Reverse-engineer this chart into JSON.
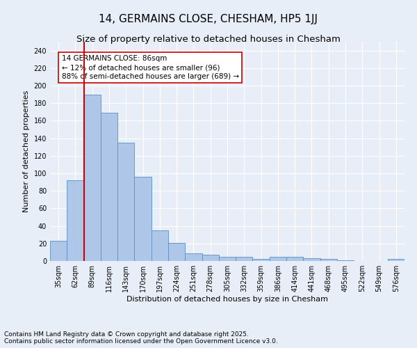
{
  "title": "14, GERMAINS CLOSE, CHESHAM, HP5 1JJ",
  "subtitle": "Size of property relative to detached houses in Chesham",
  "xlabel": "Distribution of detached houses by size in Chesham",
  "ylabel": "Number of detached properties",
  "categories": [
    "35sqm",
    "62sqm",
    "89sqm",
    "116sqm",
    "143sqm",
    "170sqm",
    "197sqm",
    "224sqm",
    "251sqm",
    "278sqm",
    "305sqm",
    "332sqm",
    "359sqm",
    "386sqm",
    "414sqm",
    "441sqm",
    "468sqm",
    "495sqm",
    "522sqm",
    "549sqm",
    "576sqm"
  ],
  "values": [
    23,
    92,
    190,
    169,
    135,
    96,
    35,
    21,
    9,
    7,
    5,
    5,
    2,
    5,
    5,
    3,
    2,
    1,
    0,
    0,
    2
  ],
  "bar_color": "#aec6e8",
  "bar_edge_color": "#5a8fc2",
  "vline_color": "#cc0000",
  "annotation_text": "14 GERMAINS CLOSE: 86sqm\n← 12% of detached houses are smaller (96)\n88% of semi-detached houses are larger (689) →",
  "annotation_box_color": "#ffffff",
  "annotation_box_edgecolor": "#cc0000",
  "ylim": [
    0,
    250
  ],
  "yticks": [
    0,
    20,
    40,
    60,
    80,
    100,
    120,
    140,
    160,
    180,
    200,
    220,
    240
  ],
  "background_color": "#e8eef8",
  "footer_line1": "Contains HM Land Registry data © Crown copyright and database right 2025.",
  "footer_line2": "Contains public sector information licensed under the Open Government Licence v3.0.",
  "title_fontsize": 11,
  "subtitle_fontsize": 9.5,
  "axis_label_fontsize": 8,
  "tick_fontsize": 7,
  "annotation_fontsize": 7.5,
  "footer_fontsize": 6.5
}
